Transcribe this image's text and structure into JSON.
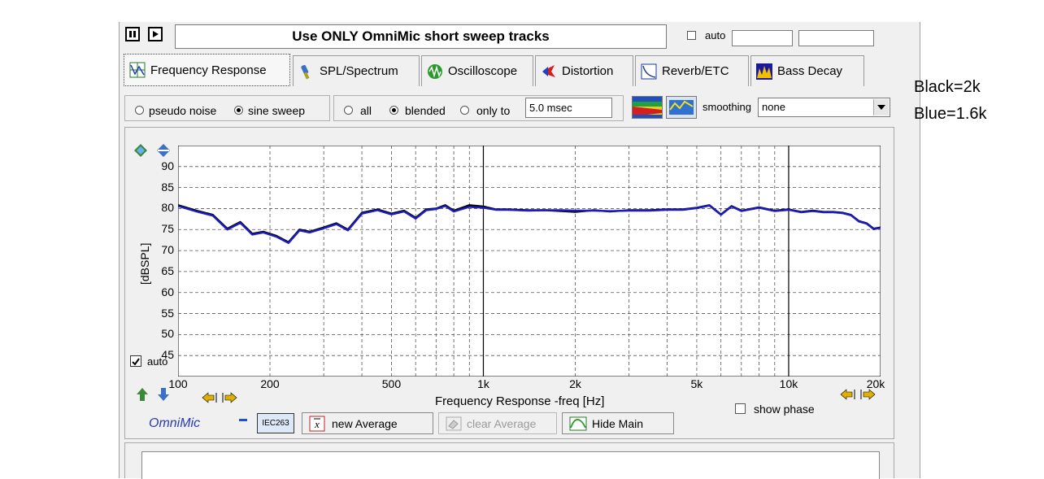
{
  "toolbar": {
    "title_message": "Use ONLY OmniMic short sweep tracks",
    "auto_label": "auto",
    "auto_checked": false
  },
  "tabs": [
    {
      "label": "Frequency Response",
      "active": true
    },
    {
      "label": "SPL/Spectrum"
    },
    {
      "label": "Oscilloscope"
    },
    {
      "label": "Distortion"
    },
    {
      "label": "Reverb/ETC"
    },
    {
      "label": "Bass Decay"
    }
  ],
  "signal": {
    "options": [
      "pseudo noise",
      "sine sweep"
    ],
    "selected": "sine sweep"
  },
  "window": {
    "options": [
      "all",
      "blended",
      "only to"
    ],
    "selected": "blended",
    "only_to_value": "5.0 msec"
  },
  "smoothing": {
    "label": "smoothing",
    "value": "none"
  },
  "chart_data": {
    "type": "line",
    "xlabel": "Frequency Response -freq [Hz]",
    "ylabel": "[dBSPL]",
    "x_scale": "log",
    "xlim": [
      100,
      20000
    ],
    "ylim": [
      40,
      95
    ],
    "y_ticks": [
      90,
      85,
      80,
      75,
      70,
      65,
      60,
      55,
      50,
      45
    ],
    "x_ticks": [
      {
        "value": 100,
        "label": "100"
      },
      {
        "value": 200,
        "label": "200"
      },
      {
        "value": 500,
        "label": "500"
      },
      {
        "value": 1000,
        "label": "1k"
      },
      {
        "value": 2000,
        "label": "2k"
      },
      {
        "value": 5000,
        "label": "5k"
      },
      {
        "value": 10000,
        "label": "10k"
      },
      {
        "value": 20000,
        "label": "20k"
      }
    ],
    "grid": true,
    "series": [
      {
        "color": "#000000",
        "x": [
          100,
          115,
          130,
          145,
          160,
          175,
          190,
          210,
          230,
          250,
          270,
          300,
          330,
          360,
          400,
          450,
          500,
          550,
          600,
          650,
          700,
          750,
          800,
          900,
          1000,
          1100,
          1200,
          1400,
          1600,
          1800,
          2000,
          2300,
          2600,
          3000,
          3500,
          4000,
          4500,
          5000,
          5500,
          6000,
          6500,
          7000,
          8000,
          9000,
          10000,
          11000,
          12000,
          13000,
          14000,
          15000,
          16000,
          17000,
          18000,
          19000,
          20000
        ],
        "y": [
          80.8,
          79.5,
          78.5,
          75.2,
          76.8,
          74.0,
          74.5,
          73.5,
          72.0,
          75.0,
          74.5,
          75.5,
          76.5,
          75.0,
          79.0,
          79.8,
          78.8,
          79.5,
          77.8,
          79.8,
          80.0,
          80.8,
          79.5,
          80.8,
          80.5,
          79.8,
          79.8,
          79.6,
          79.6,
          79.4,
          79.2,
          79.6,
          79.3,
          79.6,
          79.6,
          79.8,
          79.8,
          80.2,
          80.8,
          78.6,
          80.6,
          79.5,
          80.3,
          79.5,
          79.8,
          79.2,
          79.5,
          79.2,
          79.2,
          79.0,
          78.5,
          77.0,
          76.5,
          75.2,
          75.5
        ]
      },
      {
        "color": "#1c1cc0",
        "x": [
          100,
          115,
          130,
          145,
          160,
          175,
          190,
          210,
          230,
          250,
          270,
          300,
          330,
          360,
          400,
          450,
          500,
          550,
          600,
          650,
          700,
          750,
          800,
          900,
          1000,
          1100,
          1200,
          1400,
          1600,
          1800,
          2000,
          2300,
          2600,
          3000,
          3500,
          4000,
          4500,
          5000,
          5500,
          6000,
          6500,
          7000,
          8000,
          9000,
          10000,
          11000,
          12000,
          13000,
          14000,
          15000,
          16000,
          17000,
          18000,
          19000,
          20000
        ],
        "y": [
          80.6,
          79.3,
          78.3,
          75.0,
          76.6,
          73.8,
          74.3,
          73.3,
          71.8,
          74.8,
          74.3,
          75.3,
          76.3,
          74.8,
          78.8,
          79.6,
          78.6,
          79.3,
          77.6,
          79.6,
          79.9,
          80.6,
          79.3,
          80.4,
          80.2,
          79.7,
          79.7,
          79.5,
          79.6,
          79.6,
          79.5,
          79.5,
          79.4,
          79.5,
          79.5,
          79.7,
          79.7,
          80.1,
          80.7,
          78.5,
          80.5,
          79.4,
          80.2,
          79.4,
          79.7,
          79.1,
          79.4,
          79.1,
          79.1,
          78.9,
          78.4,
          76.9,
          76.4,
          75.1,
          75.4
        ]
      }
    ]
  },
  "plot_controls": {
    "auto_label": "auto",
    "auto_checked": true,
    "show_phase_label": "show phase",
    "show_phase_checked": false
  },
  "bottom": {
    "brand": "OmniMic",
    "iec_label": "IEC263",
    "new_average": "new Average",
    "clear_average": "clear Average",
    "hide_main": "Hide Main"
  },
  "annotations": {
    "black": "Black=2k",
    "blue": "Blue=1.6k"
  }
}
